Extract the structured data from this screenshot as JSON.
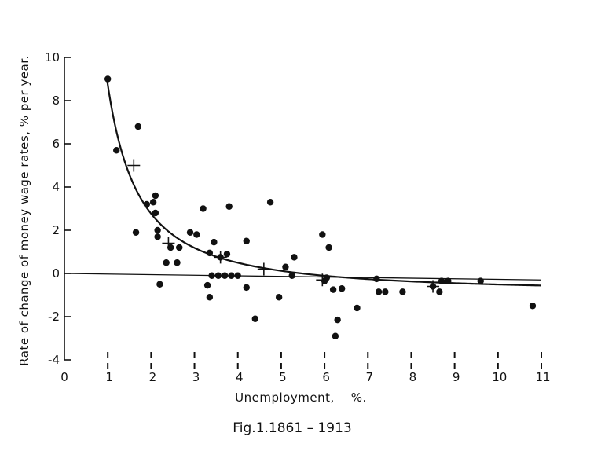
{
  "chart_data": {
    "type": "scatter",
    "title": "",
    "caption": "Fig.1.1861 – 1913",
    "xlabel": "Unemployment,    %.",
    "ylabel": "Rate of change of money wage rates, % per year.",
    "xlim": [
      0,
      11
    ],
    "ylim": [
      -4,
      10
    ],
    "x_ticks": [
      0,
      1,
      2,
      3,
      4,
      5,
      6,
      7,
      8,
      9,
      10,
      11
    ],
    "y_ticks": [
      -4,
      -2,
      0,
      2,
      4,
      6,
      8,
      10
    ],
    "grid": false,
    "legend": "none",
    "series": [
      {
        "marker": "dot",
        "points": [
          [
            1.0,
            9.0
          ],
          [
            1.2,
            5.7
          ],
          [
            1.7,
            6.8
          ],
          [
            1.65,
            1.9
          ],
          [
            1.9,
            3.2
          ],
          [
            2.05,
            3.3
          ],
          [
            2.1,
            3.6
          ],
          [
            2.1,
            2.8
          ],
          [
            2.15,
            2.0
          ],
          [
            2.15,
            1.7
          ],
          [
            2.2,
            -0.5
          ],
          [
            2.35,
            0.5
          ],
          [
            2.45,
            1.2
          ],
          [
            2.6,
            0.5
          ],
          [
            2.65,
            1.2
          ],
          [
            2.9,
            1.9
          ],
          [
            3.05,
            1.8
          ],
          [
            3.2,
            3.0
          ],
          [
            3.3,
            -0.55
          ],
          [
            3.35,
            -1.1
          ],
          [
            3.35,
            0.95
          ],
          [
            3.4,
            -0.1
          ],
          [
            3.45,
            1.45
          ],
          [
            3.55,
            -0.1
          ],
          [
            3.6,
            0.75
          ],
          [
            3.7,
            -0.1
          ],
          [
            3.75,
            0.9
          ],
          [
            3.8,
            3.1
          ],
          [
            3.85,
            -0.1
          ],
          [
            4.0,
            -0.1
          ],
          [
            4.2,
            1.5
          ],
          [
            4.2,
            -0.65
          ],
          [
            4.4,
            -2.1
          ],
          [
            4.75,
            3.3
          ],
          [
            4.95,
            -1.1
          ],
          [
            5.1,
            0.3
          ],
          [
            5.25,
            -0.1
          ],
          [
            5.3,
            0.75
          ],
          [
            5.95,
            1.8
          ],
          [
            6.0,
            -0.35
          ],
          [
            6.05,
            -0.2
          ],
          [
            6.1,
            1.2
          ],
          [
            6.2,
            -0.75
          ],
          [
            6.25,
            -2.9
          ],
          [
            6.3,
            -2.15
          ],
          [
            6.4,
            -0.7
          ],
          [
            6.75,
            -1.6
          ],
          [
            7.2,
            -0.25
          ],
          [
            7.25,
            -0.85
          ],
          [
            7.4,
            -0.85
          ],
          [
            7.8,
            -0.85
          ],
          [
            8.5,
            -0.6
          ],
          [
            8.65,
            -0.85
          ],
          [
            8.7,
            -0.35
          ],
          [
            8.85,
            -0.35
          ],
          [
            9.6,
            -0.35
          ],
          [
            10.8,
            -1.5
          ]
        ]
      },
      {
        "marker": "cross",
        "points": [
          [
            1.6,
            5.0
          ],
          [
            2.4,
            1.4
          ],
          [
            3.6,
            0.75
          ],
          [
            4.6,
            0.2
          ],
          [
            5.95,
            -0.3
          ],
          [
            8.5,
            -0.6
          ]
        ]
      }
    ],
    "curve": {
      "formula": "y = -0.900 + 9.638 * x^-1.394",
      "a": -0.9,
      "b": 9.638,
      "c": -1.394,
      "x_range": [
        0.98,
        11.0
      ]
    },
    "reference_lines": [
      {
        "type": "line",
        "from": [
          0,
          0
        ],
        "to": [
          11,
          -0.3
        ]
      }
    ]
  }
}
